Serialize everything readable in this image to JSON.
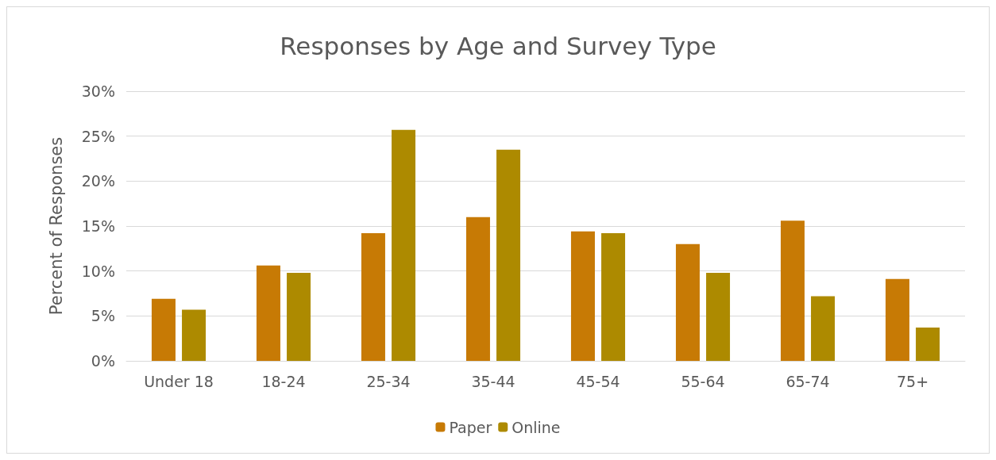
{
  "chart_data": {
    "type": "bar",
    "title": "Responses by Age and Survey Type",
    "ylabel": "Percent of Responses",
    "categories": [
      "Under 18",
      "18-24",
      "25-34",
      "35-44",
      "45-54",
      "55-64",
      "65-74",
      "75+"
    ],
    "series": [
      {
        "name": "Paper",
        "color": "#c77a05",
        "values": [
          6.9,
          10.6,
          14.2,
          16.0,
          14.4,
          13.0,
          15.6,
          9.1
        ]
      },
      {
        "name": "Online",
        "color": "#ad8a00",
        "values": [
          5.7,
          9.8,
          25.7,
          23.5,
          14.2,
          9.8,
          7.2,
          3.7
        ]
      }
    ],
    "ylim": [
      0,
      30
    ],
    "yticks": [
      {
        "value": 0,
        "label": "0%"
      },
      {
        "value": 5,
        "label": "5%"
      },
      {
        "value": 10,
        "label": "10%"
      },
      {
        "value": 15,
        "label": "15%"
      },
      {
        "value": 20,
        "label": "20%"
      },
      {
        "value": 25,
        "label": "25%"
      },
      {
        "value": 30,
        "label": "30%"
      }
    ],
    "grid": "y",
    "legend": "bottom"
  }
}
